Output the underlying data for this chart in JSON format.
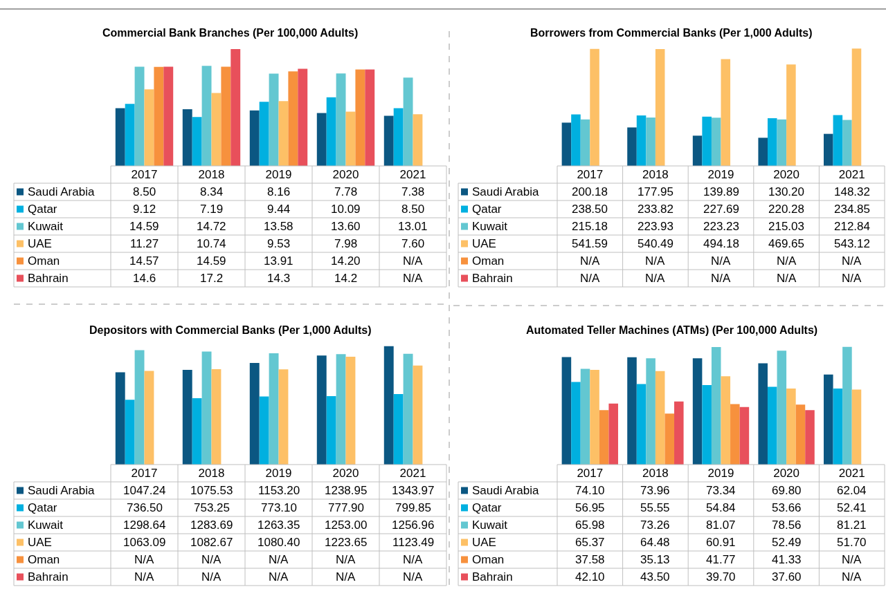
{
  "chart_data": [
    {
      "type": "bar",
      "title": "Commercial Bank Branches (Per 100,000 Adults)",
      "categories": [
        "2017",
        "2018",
        "2019",
        "2020",
        "2021"
      ],
      "ylim": [
        0,
        17.5
      ],
      "tick_labels": "x",
      "legend": "bottom left",
      "series": [
        {
          "name": "Saudi Arabia",
          "color": "#0b5782",
          "values": [
            8.5,
            8.34,
            8.16,
            7.78,
            7.38
          ],
          "value_labels": [
            "8.50",
            "8.34",
            "8.16",
            "7.78",
            "7.38"
          ]
        },
        {
          "name": "Qatar",
          "color": "#00b0e0",
          "values": [
            9.12,
            7.19,
            9.44,
            10.09,
            8.5
          ],
          "value_labels": [
            "9.12",
            "7.19",
            "9.44",
            "10.09",
            "8.50"
          ]
        },
        {
          "name": "Kuwait",
          "color": "#63c7d1",
          "values": [
            14.59,
            14.72,
            13.58,
            13.6,
            13.01
          ],
          "value_labels": [
            "14.59",
            "14.72",
            "13.58",
            "13.60",
            "13.01"
          ]
        },
        {
          "name": "UAE",
          "color": "#fdc066",
          "values": [
            11.27,
            10.74,
            9.53,
            7.98,
            7.6
          ],
          "value_labels": [
            "11.27",
            "10.74",
            "9.53",
            "7.98",
            "7.60"
          ]
        },
        {
          "name": "Oman",
          "color": "#f7913d",
          "values": [
            14.57,
            14.59,
            13.91,
            14.2,
            null
          ],
          "value_labels": [
            "14.57",
            "14.59",
            "13.91",
            "14.20",
            "N/A"
          ]
        },
        {
          "name": "Bahrain",
          "color": "#e8505b",
          "values": [
            14.6,
            17.2,
            14.3,
            14.2,
            null
          ],
          "value_labels": [
            "14.6",
            "17.2",
            "14.3",
            "14.2",
            "N/A"
          ]
        }
      ]
    },
    {
      "type": "bar",
      "title": "Borrowers from Commercial Banks (Per 1,000 Adults)",
      "categories": [
        "2017",
        "2018",
        "2019",
        "2020",
        "2021"
      ],
      "ylim": [
        0,
        550
      ],
      "tick_labels": "x",
      "legend": "bottom left",
      "series": [
        {
          "name": "Saudi Arabia",
          "color": "#0b5782",
          "values": [
            200.18,
            177.95,
            139.89,
            130.2,
            148.32
          ],
          "value_labels": [
            "200.18",
            "177.95",
            "139.89",
            "130.20",
            "148.32"
          ]
        },
        {
          "name": "Qatar",
          "color": "#00b0e0",
          "values": [
            238.5,
            233.82,
            227.69,
            220.28,
            234.85
          ],
          "value_labels": [
            "238.50",
            "233.82",
            "227.69",
            "220.28",
            "234.85"
          ]
        },
        {
          "name": "Kuwait",
          "color": "#63c7d1",
          "values": [
            215.18,
            223.93,
            223.23,
            215.03,
            212.84
          ],
          "value_labels": [
            "215.18",
            "223.93",
            "223.23",
            "215.03",
            "212.84"
          ]
        },
        {
          "name": "UAE",
          "color": "#fdc066",
          "values": [
            541.59,
            540.49,
            494.18,
            469.65,
            543.12
          ],
          "value_labels": [
            "541.59",
            "540.49",
            "494.18",
            "469.65",
            "543.12"
          ]
        },
        {
          "name": "Oman",
          "color": "#f7913d",
          "values": [
            null,
            null,
            null,
            null,
            null
          ],
          "value_labels": [
            "N/A",
            "N/A",
            "N/A",
            "N/A",
            "N/A"
          ]
        },
        {
          "name": "Bahrain",
          "color": "#e8505b",
          "values": [
            null,
            null,
            null,
            null,
            null
          ],
          "value_labels": [
            "N/A",
            "N/A",
            "N/A",
            "N/A",
            "N/A"
          ]
        }
      ]
    },
    {
      "type": "bar",
      "title": "Depositors with Commercial Banks (Per 1,000 Adults)",
      "categories": [
        "2017",
        "2018",
        "2019",
        "2020",
        "2021"
      ],
      "ylim": [
        0,
        1350
      ],
      "tick_labels": "x",
      "legend": "bottom left",
      "series": [
        {
          "name": "Saudi Arabia",
          "color": "#0b5782",
          "values": [
            1047.24,
            1075.53,
            1153.2,
            1238.95,
            1343.97
          ],
          "value_labels": [
            "1047.24",
            "1075.53",
            "1153.20",
            "1238.95",
            "1343.97"
          ]
        },
        {
          "name": "Qatar",
          "color": "#00b0e0",
          "values": [
            736.5,
            753.25,
            773.1,
            777.9,
            799.85
          ],
          "value_labels": [
            "736.50",
            "753.25",
            "773.10",
            "777.90",
            "799.85"
          ]
        },
        {
          "name": "Kuwait",
          "color": "#63c7d1",
          "values": [
            1298.64,
            1283.69,
            1263.35,
            1253.0,
            1256.96
          ],
          "value_labels": [
            "1298.64",
            "1283.69",
            "1263.35",
            "1253.00",
            "1256.96"
          ]
        },
        {
          "name": "UAE",
          "color": "#fdc066",
          "values": [
            1063.09,
            1082.67,
            1080.4,
            1223.65,
            1123.49
          ],
          "value_labels": [
            "1063.09",
            "1082.67",
            "1080.40",
            "1223.65",
            "1123.49"
          ]
        },
        {
          "name": "Oman",
          "color": "#f7913d",
          "values": [
            null,
            null,
            null,
            null,
            null
          ],
          "value_labels": [
            "N/A",
            "N/A",
            "N/A",
            "N/A",
            "N/A"
          ]
        },
        {
          "name": "Bahrain",
          "color": "#e8505b",
          "values": [
            null,
            null,
            null,
            null,
            null
          ],
          "value_labels": [
            "N/A",
            "N/A",
            "N/A",
            "N/A",
            "N/A"
          ]
        }
      ]
    },
    {
      "type": "bar",
      "title": "Automated Teller Machines (ATMs) (Per 100,000 Adults)",
      "categories": [
        "2017",
        "2018",
        "2019",
        "2020",
        "2021"
      ],
      "ylim": [
        0,
        82
      ],
      "tick_labels": "x",
      "legend": "bottom left",
      "series": [
        {
          "name": "Saudi Arabia",
          "color": "#0b5782",
          "values": [
            74.1,
            73.96,
            73.34,
            69.8,
            62.04
          ],
          "value_labels": [
            "74.10",
            "73.96",
            "73.34",
            "69.80",
            "62.04"
          ]
        },
        {
          "name": "Qatar",
          "color": "#00b0e0",
          "values": [
            56.95,
            55.55,
            54.84,
            53.66,
            52.41
          ],
          "value_labels": [
            "56.95",
            "55.55",
            "54.84",
            "53.66",
            "52.41"
          ]
        },
        {
          "name": "Kuwait",
          "color": "#63c7d1",
          "values": [
            65.98,
            73.26,
            81.07,
            78.56,
            81.21
          ],
          "value_labels": [
            "65.98",
            "73.26",
            "81.07",
            "78.56",
            "81.21"
          ]
        },
        {
          "name": "UAE",
          "color": "#fdc066",
          "values": [
            65.37,
            64.48,
            60.91,
            52.49,
            51.7
          ],
          "value_labels": [
            "65.37",
            "64.48",
            "60.91",
            "52.49",
            "51.70"
          ]
        },
        {
          "name": "Oman",
          "color": "#f7913d",
          "values": [
            37.58,
            35.13,
            41.77,
            41.33,
            null
          ],
          "value_labels": [
            "37.58",
            "35.13",
            "41.77",
            "41.33",
            "N/A"
          ]
        },
        {
          "name": "Bahrain",
          "color": "#e8505b",
          "values": [
            42.1,
            43.5,
            39.7,
            37.6,
            null
          ],
          "value_labels": [
            "42.10",
            "43.50",
            "39.70",
            "37.60",
            "N/A"
          ]
        }
      ]
    }
  ]
}
